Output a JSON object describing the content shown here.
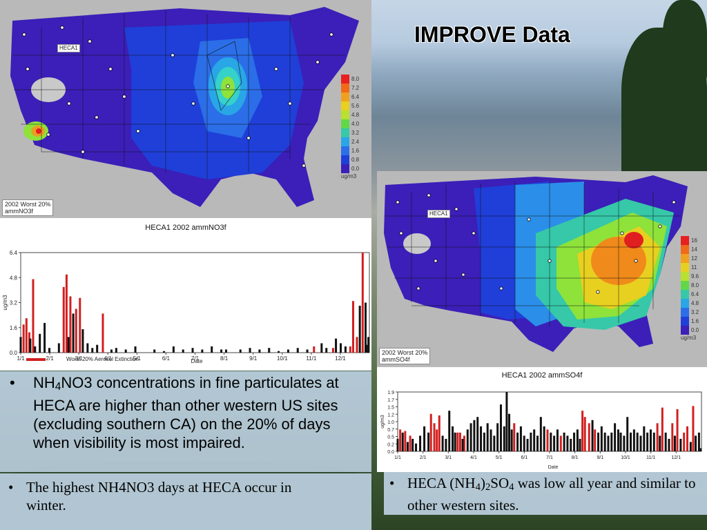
{
  "slide_title": "IMPROVE Data",
  "colors": {
    "worst20": "#d11f1f",
    "other": "#111111",
    "nitrate_high": "#d23a2a",
    "sulfate_high": "#e87a1a"
  },
  "map_no3": {
    "site_label": "HECA1",
    "legend_values": [
      "8.0",
      "7.2",
      "6.4",
      "5.6",
      "4.8",
      "4.0",
      "3.2",
      "2.4",
      "1.6",
      "0.8",
      "0.0"
    ],
    "unit": "ug/m3",
    "caption_line1": "2002 Worst 20%",
    "caption_line2": "ammNO3f"
  },
  "map_so4": {
    "site_label": "HECA1",
    "legend_values": [
      "16",
      "14",
      "12",
      "11",
      "9.6",
      "8.0",
      "6.4",
      "4.8",
      "3.2",
      "1.6",
      "0.0"
    ],
    "unit": "ug/m3",
    "caption_line1": "2002 Worst 20%",
    "caption_line2": "ammSO4f"
  },
  "chart_data": [
    {
      "type": "bar",
      "title": "HECA1 2002 ammNO3f",
      "ylabel": "ug/m3",
      "xlabel": "Date",
      "ylim": [
        0,
        6.4
      ],
      "yticks": [
        "0.0",
        "1.6",
        "3.2",
        "4.8",
        "6.4"
      ],
      "xticks": [
        "1/1",
        "2/1",
        "3/1",
        "4/1",
        "5/1",
        "6/1",
        "7/1",
        "8/1",
        "9/1",
        "10/1",
        "11/1",
        "12/1"
      ],
      "legend": "Worst 20% Aerosol Extinction",
      "series": [
        {
          "name": "Worst 20% Aerosol Extinction",
          "points": [
            [
              3,
              1.8
            ],
            [
              6,
              2.2
            ],
            [
              9,
              1.3
            ],
            [
              13,
              4.7
            ],
            [
              45,
              4.2
            ],
            [
              48,
              5.0
            ],
            [
              52,
              3.6
            ],
            [
              58,
              2.8
            ],
            [
              62,
              3.5
            ],
            [
              86,
              2.5
            ],
            [
              307,
              0.4
            ],
            [
              327,
              0.3
            ],
            [
              345,
              0.4
            ],
            [
              348,
              3.3
            ],
            [
              352,
              1.0
            ],
            [
              358,
              6.4
            ]
          ]
        },
        {
          "name": "",
          "points": [
            [
              0,
              1.0
            ],
            [
              10,
              0.9
            ],
            [
              15,
              0.4
            ],
            [
              20,
              1.2
            ],
            [
              25,
              1.9
            ],
            [
              30,
              0.3
            ],
            [
              40,
              0.6
            ],
            [
              50,
              1.0
            ],
            [
              55,
              2.5
            ],
            [
              65,
              1.5
            ],
            [
              70,
              0.6
            ],
            [
              75,
              0.3
            ],
            [
              80,
              0.5
            ],
            [
              95,
              0.2
            ],
            [
              100,
              0.3
            ],
            [
              110,
              0.2
            ],
            [
              120,
              0.4
            ],
            [
              140,
              0.2
            ],
            [
              150,
              0.1
            ],
            [
              160,
              0.4
            ],
            [
              170,
              0.2
            ],
            [
              180,
              0.3
            ],
            [
              190,
              0.2
            ],
            [
              200,
              0.4
            ],
            [
              210,
              0.2
            ],
            [
              215,
              0.2
            ],
            [
              230,
              0.2
            ],
            [
              240,
              0.3
            ],
            [
              250,
              0.2
            ],
            [
              260,
              0.3
            ],
            [
              270,
              0.1
            ],
            [
              280,
              0.2
            ],
            [
              290,
              0.3
            ],
            [
              300,
              0.2
            ],
            [
              315,
              0.6
            ],
            [
              320,
              0.3
            ],
            [
              330,
              0.9
            ],
            [
              335,
              0.6
            ],
            [
              340,
              0.4
            ],
            [
              355,
              3.0
            ],
            [
              361,
              3.2
            ],
            [
              364,
              1.0
            ],
            [
              362,
              0.5
            ]
          ]
        }
      ]
    },
    {
      "type": "bar",
      "title": "HECA1 2002 ammSO4f",
      "ylabel": "ug/m3",
      "xlabel": "Date",
      "ylim": [
        0,
        1.9
      ],
      "yticks": [
        "0.0",
        "0.2",
        "0.5",
        "0.7",
        "1.0",
        "1.2",
        "1.5",
        "1.7",
        "1.9"
      ],
      "xticks": [
        "1/1",
        "2/1",
        "3/1",
        "4/1",
        "5/1",
        "6/1",
        "7/1",
        "8/1",
        "9/1",
        "10/1",
        "11/1",
        "12/1"
      ],
      "series": [
        {
          "name": "Worst 20% Aerosol Extinction",
          "points": [
            [
              3,
              0.7
            ],
            [
              9,
              0.65
            ],
            [
              15,
              0.5
            ],
            [
              40,
              1.2
            ],
            [
              44,
              0.9
            ],
            [
              47,
              0.7
            ],
            [
              50,
              1.15
            ],
            [
              72,
              0.6
            ],
            [
              75,
              0.6
            ],
            [
              80,
              0.5
            ],
            [
              140,
              0.9
            ],
            [
              180,
              0.7
            ],
            [
              196,
              0.5
            ],
            [
              222,
              1.3
            ],
            [
              225,
              1.1
            ],
            [
              230,
              0.9
            ],
            [
              237,
              0.7
            ],
            [
              312,
              0.9
            ],
            [
              318,
              1.4
            ],
            [
              330,
              0.9
            ],
            [
              336,
              1.35
            ],
            [
              344,
              0.6
            ],
            [
              348,
              0.8
            ],
            [
              355,
              1.45
            ]
          ]
        },
        {
          "name": "",
          "points": [
            [
              0,
              0.4
            ],
            [
              6,
              0.6
            ],
            [
              12,
              0.3
            ],
            [
              18,
              0.4
            ],
            [
              22,
              0.25
            ],
            [
              27,
              0.5
            ],
            [
              32,
              0.8
            ],
            [
              37,
              0.6
            ],
            [
              54,
              0.5
            ],
            [
              58,
              0.4
            ],
            [
              62,
              1.3
            ],
            [
              66,
              0.8
            ],
            [
              69,
              0.6
            ],
            [
              78,
              0.4
            ],
            [
              84,
              0.7
            ],
            [
              88,
              0.9
            ],
            [
              92,
              1.0
            ],
            [
              96,
              1.1
            ],
            [
              100,
              0.8
            ],
            [
              104,
              0.6
            ],
            [
              108,
              0.9
            ],
            [
              112,
              0.7
            ],
            [
              116,
              0.5
            ],
            [
              120,
              0.9
            ],
            [
              124,
              1.5
            ],
            [
              128,
              0.8
            ],
            [
              131,
              1.9
            ],
            [
              134,
              1.2
            ],
            [
              137,
              0.7
            ],
            [
              144,
              0.6
            ],
            [
              148,
              0.8
            ],
            [
              152,
              0.5
            ],
            [
              156,
              0.4
            ],
            [
              160,
              0.6
            ],
            [
              164,
              0.7
            ],
            [
              168,
              0.5
            ],
            [
              172,
              1.1
            ],
            [
              176,
              0.8
            ],
            [
              184,
              0.6
            ],
            [
              188,
              0.5
            ],
            [
              192,
              0.7
            ],
            [
              200,
              0.6
            ],
            [
              204,
              0.5
            ],
            [
              208,
              0.4
            ],
            [
              212,
              0.6
            ],
            [
              216,
              0.7
            ],
            [
              219,
              0.4
            ],
            [
              234,
              1.0
            ],
            [
              241,
              0.6
            ],
            [
              245,
              0.8
            ],
            [
              249,
              0.6
            ],
            [
              253,
              0.5
            ],
            [
              257,
              0.6
            ],
            [
              261,
              0.9
            ],
            [
              265,
              0.7
            ],
            [
              268,
              0.6
            ],
            [
              272,
              0.5
            ],
            [
              276,
              1.1
            ],
            [
              280,
              0.6
            ],
            [
              284,
              0.7
            ],
            [
              288,
              0.6
            ],
            [
              292,
              0.5
            ],
            [
              296,
              0.8
            ],
            [
              300,
              0.6
            ],
            [
              304,
              0.7
            ],
            [
              308,
              0.6
            ],
            [
              315,
              0.5
            ],
            [
              322,
              0.6
            ],
            [
              326,
              0.4
            ],
            [
              333,
              0.5
            ],
            [
              340,
              0.4
            ],
            [
              352,
              0.3
            ],
            [
              358,
              0.5
            ],
            [
              362,
              0.6
            ],
            [
              364,
              0.1
            ]
          ]
        }
      ]
    }
  ],
  "bullets_left": {
    "b1_prefix": "NH",
    "b1_sub": "4",
    "b1_rest": "NO3 concentrations in fine particulates at HECA are higher than other western US sites (excluding southern CA) on the 20% of days when visibility is most impaired.",
    "b2": "The highest NH4NO3 days at HECA occur in winter."
  },
  "bullets_right": {
    "b3_a": "HECA (NH",
    "b3_sub1": "4",
    "b3_b": ")",
    "b3_sub2": "2",
    "b3_c": "SO",
    "b3_sub3": "4",
    "b3_d": " was low all year and similar to other western sites."
  }
}
